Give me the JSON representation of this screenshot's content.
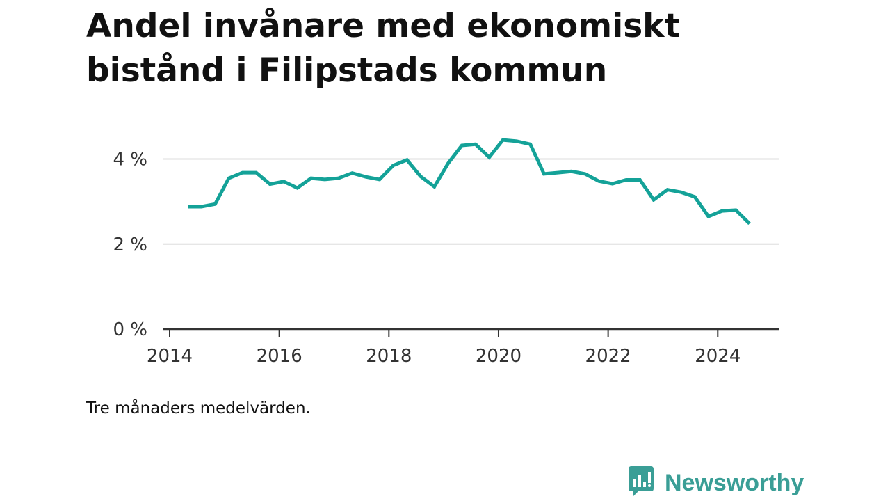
{
  "colors": {
    "line": "#14a298",
    "grid": "#dddddd",
    "axis": "#333333",
    "brand": "#3a9e96"
  },
  "caption": "Tre månaders medelvärden.",
  "brand": {
    "name": "Newsworthy",
    "icon": "bar-chart-speech-bubble-icon"
  },
  "chart_data": {
    "type": "line",
    "title": "Andel invånare med ekonomiskt bistånd i Filipstads kommun",
    "xlabel": "",
    "ylabel": "",
    "xlim": [
      2014.0,
      2025.1
    ],
    "ylim": [
      0,
      4.5
    ],
    "xticks": [
      2014,
      2016,
      2018,
      2020,
      2022,
      2024
    ],
    "xtick_labels": [
      "2014",
      "2016",
      "2018",
      "2020",
      "2022",
      "2024"
    ],
    "yticks": [
      0,
      2,
      4
    ],
    "ytick_labels": [
      "0 %",
      "2 %",
      "4 %"
    ],
    "grid": true,
    "legend": "none",
    "series": [
      {
        "x": [
          2014.33,
          2014.58,
          2014.83,
          2015.08,
          2015.33,
          2015.58,
          2015.83,
          2016.08,
          2016.33,
          2016.58,
          2016.83,
          2017.08,
          2017.33,
          2017.58,
          2017.83,
          2018.08,
          2018.33,
          2018.58,
          2018.83,
          2019.08,
          2019.33,
          2019.58,
          2019.83,
          2020.08,
          2020.33,
          2020.58,
          2020.83,
          2021.08,
          2021.33,
          2021.58,
          2021.83,
          2022.08,
          2022.33,
          2022.58,
          2022.83,
          2023.08,
          2023.33,
          2023.58,
          2023.83,
          2024.08,
          2024.33,
          2024.58
        ],
        "values": [
          2.88,
          2.88,
          2.94,
          3.55,
          3.68,
          3.68,
          3.41,
          3.47,
          3.32,
          3.55,
          3.52,
          3.55,
          3.67,
          3.58,
          3.52,
          3.85,
          3.98,
          3.59,
          3.35,
          3.9,
          4.32,
          4.35,
          4.04,
          4.45,
          4.42,
          4.35,
          3.65,
          3.68,
          3.71,
          3.65,
          3.48,
          3.42,
          3.51,
          3.51,
          3.04,
          3.28,
          3.22,
          3.11,
          2.65,
          2.78,
          2.8,
          2.48
        ]
      }
    ]
  }
}
